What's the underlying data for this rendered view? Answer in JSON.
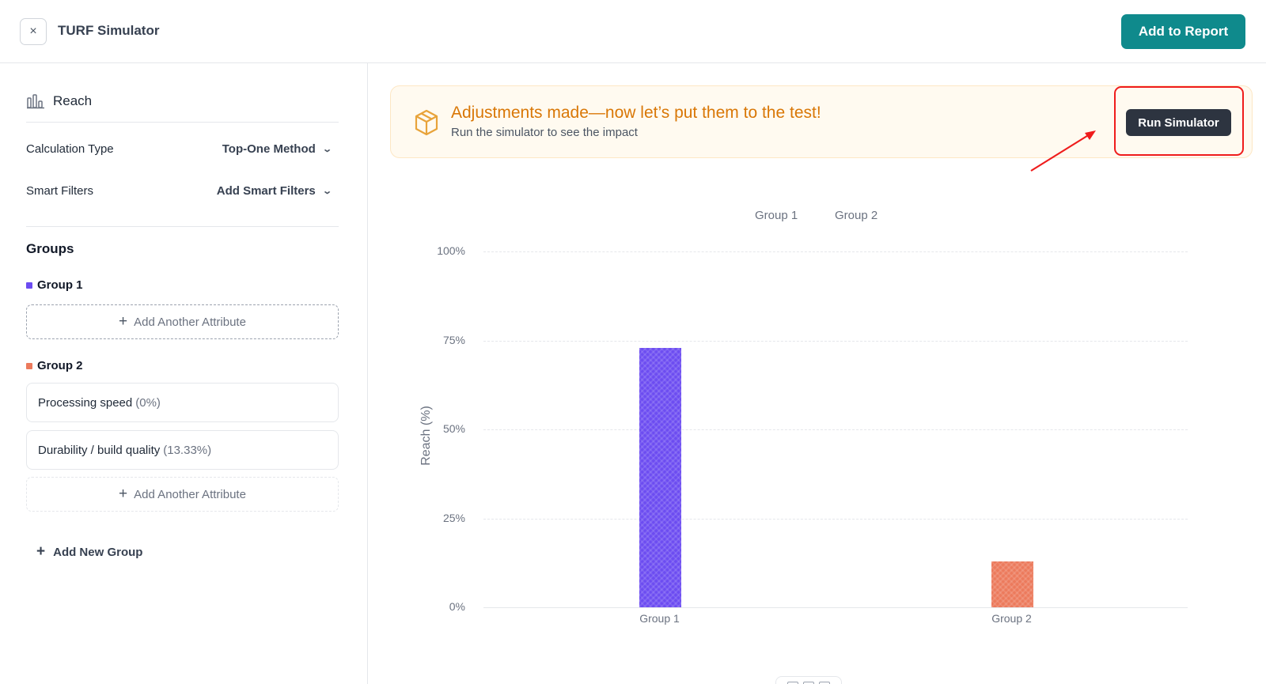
{
  "header": {
    "close_icon": "×",
    "title": "TURF Simulator",
    "add_to_report_label": "Add to Report",
    "accent_color": "#0f8a8c"
  },
  "sidebar": {
    "section_title": "Reach",
    "section_icon": "bar-chart-icon",
    "settings": [
      {
        "label": "Calculation Type",
        "value": "Top-One Method"
      },
      {
        "label": "Smart Filters",
        "value": "Add Smart Filters"
      }
    ],
    "groups_title": "Groups",
    "groups": [
      {
        "name": "Group 1",
        "color": "#6c4cf1",
        "attributes": [],
        "add_attribute_label": "Add Another Attribute"
      },
      {
        "name": "Group 2",
        "color": "#ec7a5c",
        "attributes": [
          {
            "name": "Processing speed",
            "pct": "(0%)"
          },
          {
            "name": "Durability / build quality",
            "pct": "(13.33%)"
          }
        ],
        "add_attribute_label": "Add Another Attribute"
      }
    ],
    "add_group_label": "Add New Group"
  },
  "banner": {
    "icon": "cube-icon",
    "title": "Adjustments made—now let’s put them to the test!",
    "subtitle": "Run the simulator to see the impact",
    "run_button_label": "Run Simulator",
    "title_color": "#d97706"
  },
  "annotation": {
    "highlight_color": "#ef1c1c"
  },
  "chart_data": {
    "type": "bar",
    "categories": [
      "Group 1",
      "Group 2"
    ],
    "values": [
      73,
      13
    ],
    "colors": [
      "#6c4cf1",
      "#ec7a5c"
    ],
    "legend": [
      "Group 1",
      "Group 2"
    ],
    "legend_position": "top-center",
    "xlabel": "",
    "ylabel": "Reach (%)",
    "ylim": [
      0,
      100
    ],
    "yticks": [
      "100%",
      "75%",
      "50%",
      "25%",
      "0%"
    ],
    "grid": true
  }
}
